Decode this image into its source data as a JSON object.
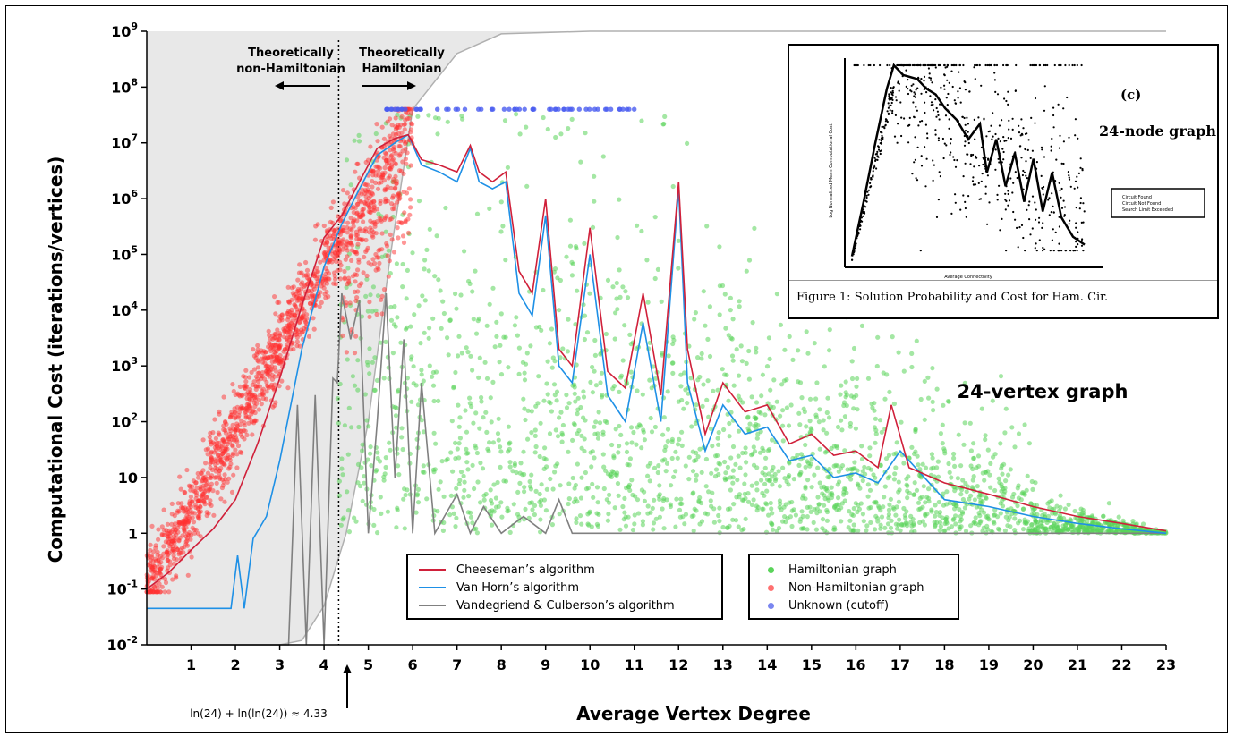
{
  "chart_data": {
    "type": "scatter",
    "title": "24-vertex graph",
    "xlabel": "Average Vertex Degree",
    "ylabel": "Computational Cost (iterations/vertices)",
    "xlim": [
      0,
      23
    ],
    "ylim": [
      0.01,
      1000000000
    ],
    "yscale": "log",
    "x_ticks": [
      "1",
      "2",
      "3",
      "4",
      "5",
      "6",
      "7",
      "8",
      "9",
      "10",
      "11",
      "12",
      "13",
      "14",
      "15",
      "16",
      "17",
      "18",
      "19",
      "20",
      "21",
      "22",
      "23"
    ],
    "y_tick_labels": [
      {
        "base": "10",
        "exp": "-2"
      },
      {
        "base": "10",
        "exp": "-1"
      },
      {
        "base": "1",
        "exp": ""
      },
      {
        "base": "10",
        "exp": ""
      },
      {
        "base": "10",
        "exp": "2"
      },
      {
        "base": "10",
        "exp": "3"
      },
      {
        "base": "10",
        "exp": "4"
      },
      {
        "base": "10",
        "exp": "5"
      },
      {
        "base": "10",
        "exp": "6"
      },
      {
        "base": "10",
        "exp": "7"
      },
      {
        "base": "10",
        "exp": "8"
      },
      {
        "base": "10",
        "exp": "9"
      }
    ],
    "threshold": {
      "x": 4.33,
      "label": "ln(24) + ln(ln(24)) ≈ 4.33"
    },
    "region_labels": {
      "left": [
        "Theoretically",
        "non-Hamiltonian"
      ],
      "right": [
        "Theoretically",
        "Hamiltonian"
      ]
    },
    "series": [
      {
        "name": "Cheeseman’s algorithm",
        "color": "#d0203a",
        "x": [
          0,
          0.5,
          1,
          1.5,
          2,
          2.5,
          3,
          3.5,
          4,
          4.4,
          4.8,
          5.2,
          5.6,
          5.9,
          6.2,
          6.6,
          7,
          7.3,
          7.5,
          7.8,
          8.1,
          8.4,
          8.7,
          9,
          9.3,
          9.6,
          10,
          10.4,
          10.8,
          11.2,
          11.6,
          12,
          12.2,
          12.6,
          13,
          13.5,
          14,
          14.5,
          15,
          15.5,
          16,
          16.5,
          16.8,
          17.2,
          18,
          19,
          20,
          21,
          22,
          23
        ],
        "y": [
          0.1,
          0.2,
          0.5,
          1.2,
          4,
          40,
          600,
          12000,
          200000,
          500000,
          2000000,
          8000000,
          12000000,
          14000000,
          5000000,
          4000000,
          3000000,
          9000000,
          3000000,
          2000000,
          3000000,
          50000,
          20000,
          1000000,
          2000,
          1000,
          300000,
          800,
          400,
          20000,
          300,
          2000000,
          2000,
          60,
          500,
          150,
          200,
          40,
          60,
          25,
          30,
          15,
          200,
          15,
          8,
          5,
          3,
          2,
          1.5,
          1.1
        ]
      },
      {
        "name": "Van Horn’s algorithm",
        "color": "#1e90e6",
        "x": [
          0,
          1,
          1.9,
          2.05,
          2.2,
          2.4,
          2.7,
          3,
          3.5,
          4,
          4.4,
          4.8,
          5.2,
          5.6,
          5.9,
          6.2,
          6.6,
          7,
          7.3,
          7.5,
          7.8,
          8.1,
          8.4,
          8.7,
          9,
          9.3,
          9.6,
          10,
          10.4,
          10.8,
          11.2,
          11.6,
          12,
          12.2,
          12.6,
          13,
          13.5,
          14,
          14.5,
          15,
          15.5,
          16,
          16.5,
          17,
          18,
          19,
          20,
          21,
          22,
          23
        ],
        "y": [
          0.045,
          0.045,
          0.045,
          0.4,
          0.045,
          0.8,
          2,
          20,
          2000,
          60000,
          350000,
          1500000,
          6000000,
          10000000,
          14000000,
          4000000,
          3000000,
          2000000,
          8000000,
          2000000,
          1500000,
          2000000,
          20000,
          8000,
          500000,
          1000,
          500,
          100000,
          300,
          100,
          6000,
          100,
          1500000,
          500,
          30,
          200,
          60,
          80,
          20,
          25,
          10,
          12,
          8,
          30,
          4,
          3,
          2,
          1.5,
          1.2,
          1
        ]
      },
      {
        "name": "Vandegriend & Culberson’s algorithm",
        "color": "#808080",
        "x": [
          0,
          3.2,
          3.4,
          3.6,
          3.8,
          4,
          4.2,
          4.3,
          4.4,
          4.6,
          4.8,
          5,
          5.2,
          5.4,
          5.6,
          5.8,
          6,
          6.2,
          6.5,
          7,
          7.3,
          7.6,
          8,
          8.5,
          9,
          9.3,
          9.6,
          10,
          11,
          12,
          15,
          18,
          21,
          23
        ],
        "y": [
          0.01,
          0.01,
          200,
          0.01,
          300,
          0.01,
          600,
          500,
          20000,
          3000,
          15000,
          1,
          100,
          20000,
          10,
          3000,
          1,
          500,
          1,
          5,
          1,
          3,
          1,
          2,
          1,
          4,
          1,
          1,
          1,
          1,
          1,
          1,
          1,
          1
        ]
      },
      {
        "name": "Hamiltonian graph",
        "color": "#5ad45a",
        "marker": "dot"
      },
      {
        "name": "Non-Hamiltonian graph",
        "color": "#ff5050",
        "marker": "dot"
      },
      {
        "name": "Unknown (cutoff)",
        "color": "#5a6cf0",
        "marker": "dot"
      }
    ],
    "scatter_density": {
      "non_hamiltonian": {
        "x_range": [
          0,
          6
        ],
        "y_at_x0": 0.1,
        "y_at_x6": 40000000
      },
      "hamiltonian": {
        "x_range": [
          4.3,
          23
        ],
        "cutoff": 40000000
      },
      "unknown": {
        "y": 40000000,
        "x_range": [
          5.4,
          11
        ]
      }
    },
    "grey_bound_curve": {
      "x": [
        0,
        1,
        2,
        3,
        3.5,
        4,
        4.5,
        5,
        5.5,
        6,
        7,
        8,
        10,
        23
      ],
      "y": [
        0.01,
        0.01,
        0.01,
        0.01,
        0.012,
        0.05,
        1,
        100,
        100000,
        40000000,
        400000000,
        900000000,
        1000000000,
        1000000000
      ]
    }
  },
  "inset": {
    "title": "24-node graph",
    "panel_label": "(c)",
    "caption": "Figure 1: Solution Probability and Cost for Ham. Cir.",
    "y_axis_label": "Log Normalized Mean Computational Cost",
    "x_axis_label": "Average Connectivity",
    "legend": [
      "Circuit Found",
      "Circuit Not Found",
      "Search Limit Exceeded"
    ]
  }
}
